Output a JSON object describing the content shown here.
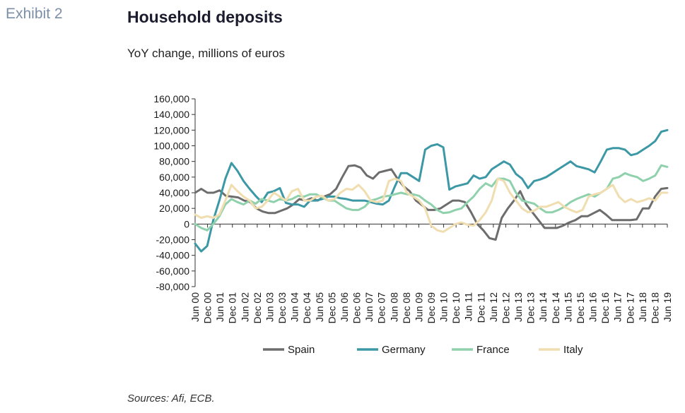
{
  "exhibit_label": "Exhibit 2",
  "title": "Household deposits",
  "subtitle": "YoY change, millions of euros",
  "sources": "Sources: Afi, ECB.",
  "colors": {
    "Spain": "#6d6d6d",
    "Germany": "#3d98a6",
    "France": "#8fd1ac",
    "Italy": "#f0ddb0"
  },
  "chart_data": {
    "type": "line",
    "ylim": [
      -80000,
      160000
    ],
    "yticks": [
      160000,
      140000,
      120000,
      100000,
      80000,
      60000,
      40000,
      20000,
      0,
      -20000,
      -40000,
      -60000,
      -80000
    ],
    "ytick_labels": [
      "160,000",
      "140,000",
      "120,000",
      "100,000",
      "80,000",
      "60,000",
      "40,000",
      "20,000",
      "0",
      "-20,000",
      "-40,000",
      "-60,000",
      "-80,000"
    ],
    "x_labels": [
      "Jun 00",
      "Dec 00",
      "Jun 01",
      "Dec 01",
      "Jun 02",
      "Dec 02",
      "Jun 03",
      "Dec 03",
      "Jun 04",
      "Dec 04",
      "Jun 05",
      "Dec 05",
      "Jun 06",
      "Dec 06",
      "Jun 07",
      "Dec 07",
      "Jun 08",
      "Dec 08",
      "Jun 09",
      "Dec 09",
      "Jun 10",
      "Dec 10",
      "Jun 11",
      "Dec 11",
      "Jun 12",
      "Dec 12",
      "Jun 13",
      "Dec 13",
      "Jun 14",
      "Dec 14",
      "Jun 15",
      "Dec 15",
      "Jun 16",
      "Dec 16",
      "Jun 17",
      "Dec 17",
      "Jun 18",
      "Dec 18",
      "Jun 19"
    ],
    "series": [
      {
        "name": "Spain",
        "values": [
          40000,
          45000,
          40000,
          40000,
          43000,
          36000,
          35000,
          34000,
          30000,
          28000,
          20000,
          16000,
          14000,
          14000,
          17000,
          20000,
          25000,
          32000,
          30000,
          33000,
          30000,
          35000,
          38000,
          45000,
          60000,
          74000,
          75000,
          72000,
          62000,
          58000,
          66000,
          68000,
          70000,
          58000,
          48000,
          42000,
          30000,
          24000,
          18000,
          18000,
          20000,
          25000,
          30000,
          30000,
          28000,
          15000,
          0,
          -8000,
          -18000,
          -20000,
          8000,
          20000,
          30000,
          42000,
          25000,
          15000,
          5000,
          -5000,
          -5000,
          -5000,
          -2000,
          2000,
          5000,
          10000,
          10000,
          14000,
          18000,
          12000,
          5000,
          5000,
          5000,
          5000,
          6000,
          20000,
          20000,
          35000,
          45000,
          46000
        ]
      },
      {
        "name": "Germany",
        "values": [
          -25000,
          -35000,
          -28000,
          5000,
          30000,
          58000,
          78000,
          68000,
          55000,
          45000,
          36000,
          28000,
          40000,
          42000,
          46000,
          27000,
          25000,
          25000,
          22000,
          30000,
          30000,
          32000,
          35000,
          35000,
          33000,
          32000,
          30000,
          30000,
          30000,
          28000,
          26000,
          25000,
          30000,
          48000,
          65000,
          65000,
          60000,
          55000,
          95000,
          100000,
          102000,
          98000,
          44000,
          48000,
          50000,
          52000,
          62000,
          58000,
          60000,
          70000,
          75000,
          80000,
          76000,
          64000,
          58000,
          46000,
          55000,
          57000,
          60000,
          65000,
          70000,
          75000,
          80000,
          74000,
          72000,
          70000,
          66000,
          80000,
          95000,
          97000,
          97000,
          95000,
          88000,
          90000,
          95000,
          100000,
          106000,
          118000,
          120000
        ]
      },
      {
        "name": "France",
        "values": [
          0,
          -5000,
          -8000,
          0,
          10000,
          25000,
          32000,
          28000,
          25000,
          30000,
          26000,
          32000,
          30000,
          28000,
          32000,
          30000,
          32000,
          36000,
          35000,
          38000,
          38000,
          34000,
          30000,
          30000,
          25000,
          20000,
          18000,
          18000,
          22000,
          30000,
          32000,
          35000,
          36000,
          38000,
          40000,
          38000,
          38000,
          36000,
          30000,
          25000,
          18000,
          14000,
          15000,
          18000,
          20000,
          28000,
          35000,
          45000,
          52000,
          48000,
          58000,
          58000,
          55000,
          40000,
          30000,
          28000,
          26000,
          20000,
          15000,
          15000,
          18000,
          22000,
          28000,
          32000,
          35000,
          38000,
          35000,
          40000,
          45000,
          58000,
          60000,
          65000,
          62000,
          60000,
          55000,
          58000,
          62000,
          75000,
          73000
        ]
      },
      {
        "name": "Italy",
        "values": [
          12000,
          8000,
          10000,
          8000,
          12000,
          30000,
          50000,
          42000,
          35000,
          30000,
          20000,
          22000,
          30000,
          40000,
          35000,
          30000,
          42000,
          45000,
          30000,
          30000,
          35000,
          36000,
          30000,
          32000,
          40000,
          45000,
          44000,
          50000,
          42000,
          30000,
          28000,
          30000,
          55000,
          58000,
          55000,
          40000,
          35000,
          30000,
          20000,
          -2000,
          -8000,
          -10000,
          -5000,
          0,
          2000,
          -1000,
          -2000,
          5000,
          15000,
          30000,
          58000,
          55000,
          40000,
          30000,
          20000,
          15000,
          17000,
          22000,
          22000,
          25000,
          28000,
          22000,
          18000,
          15000,
          18000,
          35000,
          38000,
          40000,
          45000,
          50000,
          35000,
          28000,
          32000,
          28000,
          30000,
          33000,
          30000,
          40000,
          40000
        ]
      }
    ],
    "legend": [
      "Spain",
      "Germany",
      "France",
      "Italy"
    ],
    "legend_position": "bottom",
    "grid": false
  }
}
